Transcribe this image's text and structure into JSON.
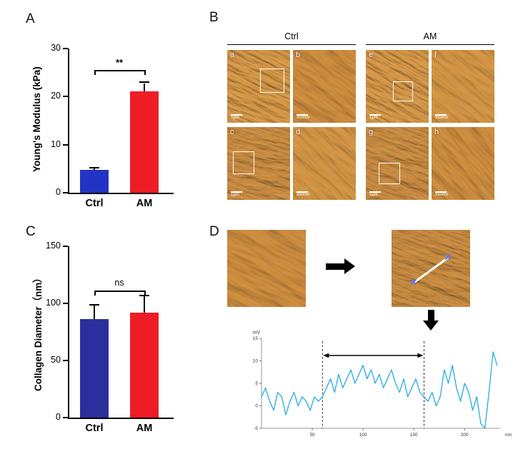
{
  "figure": {
    "panels": {
      "a": {
        "label": "A"
      },
      "b": {
        "label": "B",
        "groups": [
          {
            "name": "Ctrl"
          },
          {
            "name": "AM"
          }
        ],
        "images": [
          {
            "letter": "a",
            "scalebar": "1μm"
          },
          {
            "letter": "b",
            "scalebar": "350nm"
          },
          {
            "letter": "c",
            "scalebar": "1μm"
          },
          {
            "letter": "d",
            "scalebar": "350nm"
          },
          {
            "letter": "e",
            "scalebar": "1μm"
          },
          {
            "letter": "f",
            "scalebar": "350nm"
          },
          {
            "letter": "g",
            "scalebar": "1μm"
          },
          {
            "letter": "h",
            "scalebar": "350nm"
          }
        ]
      },
      "c": {
        "label": "C"
      },
      "d": {
        "label": "D"
      }
    }
  },
  "chart_data": [
    {
      "id": "youngs-modulus",
      "type": "bar",
      "categories": [
        "Ctrl",
        "AM"
      ],
      "values": [
        4.7,
        21.1
      ],
      "errors": [
        0.4,
        1.7
      ],
      "ylabel": "Young's Modulus (kPa)",
      "ylim": [
        0,
        30
      ],
      "yticks": [
        0,
        10,
        20,
        30
      ],
      "significance": "**",
      "bar_colors": [
        "#2334c4",
        "#ee1c25"
      ]
    },
    {
      "id": "collagen-diameter",
      "type": "bar",
      "categories": [
        "Ctrl",
        "AM"
      ],
      "values": [
        86,
        92
      ],
      "errors": [
        12,
        14
      ],
      "ylabel": "Collagen Diameter（nm）",
      "ylim": [
        0,
        150
      ],
      "yticks": [
        0,
        50,
        100,
        150
      ],
      "significance": "ns",
      "bar_colors": [
        "#2b2f9e",
        "#ee1c25"
      ]
    },
    {
      "id": "height-profile",
      "type": "line",
      "ylabel": "mV",
      "xlabel": "nm",
      "ylim": [
        -5,
        15
      ],
      "yticks": [
        -5,
        0,
        5,
        10,
        15
      ],
      "xticks": [
        50,
        100,
        150,
        200
      ],
      "xlim": [
        0,
        235
      ],
      "line_color": "#29abe2",
      "dashed_lines_x": [
        60,
        160
      ],
      "x": [
        0,
        4,
        8,
        12,
        16,
        20,
        24,
        28,
        32,
        36,
        40,
        44,
        48,
        52,
        56,
        60,
        64,
        68,
        72,
        76,
        80,
        84,
        88,
        92,
        96,
        100,
        104,
        108,
        112,
        116,
        120,
        124,
        128,
        132,
        136,
        140,
        144,
        148,
        152,
        156,
        160,
        164,
        168,
        172,
        176,
        180,
        184,
        188,
        192,
        196,
        200,
        204,
        208,
        212,
        216,
        220,
        224,
        228,
        232
      ],
      "y": [
        2,
        4,
        1,
        -1,
        3,
        2,
        -2,
        1,
        3,
        0,
        2,
        1,
        -1,
        2,
        1,
        2,
        4,
        6,
        3,
        7,
        4,
        6,
        8,
        5,
        7,
        9,
        6,
        8,
        5,
        7,
        4,
        6,
        8,
        5,
        3,
        6,
        2,
        4,
        6,
        3,
        2,
        1,
        3,
        0,
        2,
        8,
        5,
        9,
        4,
        1,
        5,
        3,
        -1,
        2,
        -4,
        -5,
        3,
        12,
        9
      ]
    }
  ]
}
